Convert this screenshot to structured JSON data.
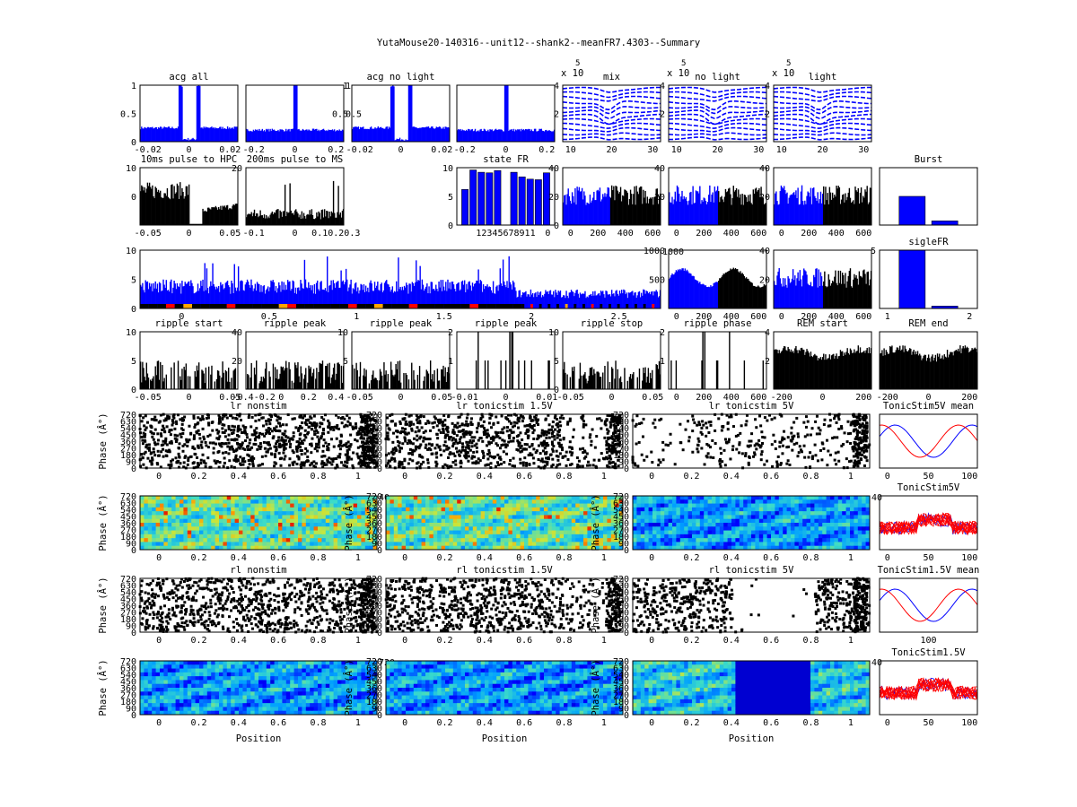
{
  "figure_title": "YutaMouse20-140316--unit12--shank2--meanFR7.4303--Summary",
  "colors": {
    "blue": "#0000ff",
    "black": "#000000",
    "red": "#ff0000"
  },
  "chart_data": [
    {
      "id": "acg-all",
      "type": "bar",
      "title": "acg all",
      "color": "blue",
      "ylim": [
        0,
        1
      ],
      "yticks": [
        "0",
        "0.5",
        "1"
      ],
      "xticks": [
        "-0.02",
        "0",
        "0.02"
      ],
      "shape": "acg-wide",
      "ytick_side": "left"
    },
    {
      "id": "acg-2",
      "type": "bar",
      "title": "",
      "color": "blue",
      "ylim": [
        0,
        1
      ],
      "yticks": [
        "0.5",
        "1"
      ],
      "xticks": [
        "-0.2",
        "0",
        "0.2"
      ],
      "shape": "acg-narrow",
      "ytick_side": "right"
    },
    {
      "id": "acg-no-light",
      "type": "bar",
      "title": "acg no light",
      "color": "blue",
      "ylim": [
        0,
        1
      ],
      "yticks": [
        "0.5",
        "1"
      ],
      "xticks": [
        "-0.02",
        "0",
        "0.02"
      ],
      "shape": "acg-wide",
      "ytick_side": "left"
    },
    {
      "id": "acg-4",
      "type": "bar",
      "title": "",
      "color": "blue",
      "ylim": [
        0,
        1
      ],
      "yticks": [],
      "xticks": [
        "-0.2",
        "0",
        "0.2"
      ],
      "shape": "acg-narrow",
      "ytick_side": "left"
    },
    {
      "id": "waveform-mix",
      "type": "line",
      "title": "mix",
      "color": "blue",
      "exponent": "x 10",
      "exponent_power": "5",
      "ylim": [
        0,
        4.5
      ],
      "yticks": [
        "2",
        "4"
      ],
      "xticks": [
        "10",
        "20",
        "30"
      ],
      "xlim": [
        0,
        32
      ]
    },
    {
      "id": "waveform-no-light",
      "type": "line",
      "title": "no light",
      "color": "blue",
      "exponent": "x 10",
      "exponent_power": "5",
      "ylim": [
        0,
        4.5
      ],
      "yticks": [
        "2",
        "4"
      ],
      "xticks": [
        "10",
        "20",
        "30"
      ],
      "xlim": [
        0,
        32
      ]
    },
    {
      "id": "waveform-light",
      "type": "line",
      "title": "light",
      "color": "blue",
      "exponent": "x 10",
      "exponent_power": "5",
      "ylim": [
        0,
        4.5
      ],
      "yticks": [
        "2",
        "4"
      ],
      "xticks": [
        "10",
        "20",
        "30"
      ],
      "xlim": [
        0,
        32
      ]
    },
    {
      "id": "pulse-hpc",
      "type": "bar",
      "title": "10ms pulse to HPC",
      "color": "black",
      "ylim": [
        0,
        20
      ],
      "yticks": [
        "0",
        "10"
      ],
      "xticks": [
        "-0.05",
        "0",
        "0.05"
      ],
      "shape": "pulse-hpc"
    },
    {
      "id": "pulse-ms",
      "type": "bar",
      "title": "200ms pulse to MS",
      "color": "black",
      "ylim": [
        0,
        20
      ],
      "yticks": [
        "20"
      ],
      "xticks": [
        "-0.1",
        "0",
        "0.10.20.3"
      ],
      "shape": "pulse-ms"
    },
    {
      "id": "state-fr",
      "type": "bar",
      "title": "state FR",
      "color": "blue",
      "ylim": [
        0,
        10
      ],
      "categories": [
        "1",
        "2",
        "3",
        "4",
        "5",
        "6",
        "7",
        "8",
        "9",
        "10",
        "11"
      ],
      "values": [
        6.2,
        9.6,
        9.2,
        9.1,
        9.5,
        0,
        9.2,
        8.4,
        8.0,
        7.9,
        9.1
      ],
      "yticks": [
        "0",
        "5",
        "10"
      ],
      "xticks": [
        "12345678911"
      ],
      "xtick_extra": "0"
    },
    {
      "id": "fr-hist-1",
      "type": "bar",
      "title": "",
      "color": "mixed",
      "ylim": [
        0,
        40
      ],
      "yticks": [
        "0",
        "20",
        "40"
      ],
      "xticks": [
        "0",
        "200",
        "400",
        "600"
      ],
      "split": 0.48,
      "shape": "fr-hist"
    },
    {
      "id": "fr-hist-2",
      "type": "bar",
      "title": "",
      "color": "mixed",
      "ylim": [
        0,
        40
      ],
      "yticks": [
        "20",
        "40"
      ],
      "xticks": [
        "0",
        "200",
        "400",
        "600"
      ],
      "split": 0.5,
      "shape": "fr-hist"
    },
    {
      "id": "fr-hist-3",
      "type": "bar",
      "title": "",
      "color": "mixed",
      "ylim": [
        0,
        40
      ],
      "yticks": [
        "20",
        "40"
      ],
      "xticks": [
        "0",
        "200",
        "400",
        "600"
      ],
      "split": 0.5,
      "shape": "fr-hist"
    },
    {
      "id": "burst",
      "type": "bar",
      "title": "Burst",
      "color": "blue",
      "ylim": [
        0,
        1.1
      ],
      "categories": [
        "1",
        "2"
      ],
      "values": [
        0.55,
        0.08
      ],
      "yticks": [],
      "xticks": []
    },
    {
      "id": "session-fr",
      "type": "bar",
      "title": "",
      "color": "blue",
      "ylim": [
        0,
        11
      ],
      "yticks": [
        "0",
        "5",
        "10"
      ],
      "xticks": [
        "0",
        "0.5",
        "1",
        "1.5",
        "2",
        "2.5"
      ],
      "shape": "session",
      "right_ytick": "1000"
    },
    {
      "id": "fr-hist-4",
      "type": "bar",
      "title": "",
      "color": "mixed",
      "ylim": [
        0,
        1000
      ],
      "yticks": [
        "500",
        "1000"
      ],
      "xticks": [
        "0",
        "200",
        "400",
        "600"
      ],
      "split": 0.5,
      "shape": "fr-flat"
    },
    {
      "id": "fr-hist-5",
      "type": "bar",
      "title": "",
      "color": "mixed",
      "ylim": [
        0,
        40
      ],
      "yticks": [
        "20",
        "40"
      ],
      "xticks": [
        "0",
        "200",
        "400",
        "600"
      ],
      "split": 0.5,
      "shape": "fr-hist"
    },
    {
      "id": "sigle-fr",
      "type": "bar",
      "title": "sigleFR",
      "color": "blue",
      "ylim": [
        0,
        5
      ],
      "categories": [
        "1",
        "2"
      ],
      "values": [
        5.0,
        0.2
      ],
      "yticks": [
        "5"
      ],
      "xticks": [
        "1",
        "2"
      ]
    },
    {
      "id": "ripple-start",
      "type": "bar",
      "title": "ripple start",
      "color": "black",
      "ylim": [
        0,
        10
      ],
      "yticks": [
        "0",
        "5",
        "10"
      ],
      "xticks": [
        "-0.05",
        "0",
        "0.05"
      ],
      "shape": "sparse"
    },
    {
      "id": "ripple-peak-1",
      "type": "bar",
      "title": "ripple peak",
      "color": "black",
      "ylim": [
        0,
        40
      ],
      "yticks": [
        "20",
        "40"
      ],
      "xticks": [
        "-0.4-0.2",
        "0",
        "0.2",
        "0.4"
      ],
      "shape": "sparse"
    },
    {
      "id": "ripple-peak-2",
      "type": "bar",
      "title": "ripple peak",
      "color": "black",
      "ylim": [
        0,
        10
      ],
      "yticks": [
        "5",
        "10"
      ],
      "xticks": [
        "-0.05",
        "0",
        "0.05"
      ],
      "shape": "sparse"
    },
    {
      "id": "ripple-peak-3",
      "type": "bar",
      "title": "ripple peak",
      "color": "black",
      "ylim": [
        0,
        2
      ],
      "yticks": [
        "1",
        "2"
      ],
      "xticks": [
        "-0.01",
        "0",
        "0.01"
      ],
      "shape": "spikes"
    },
    {
      "id": "ripple-stop",
      "type": "bar",
      "title": "ripple stop",
      "color": "black",
      "ylim": [
        0,
        10
      ],
      "yticks": [
        "0",
        "5",
        "10"
      ],
      "xticks": [
        "-0.05",
        "0",
        "0.05"
      ],
      "shape": "sparse"
    },
    {
      "id": "ripple-phase",
      "type": "bar",
      "title": "ripple phase",
      "color": "black",
      "ylim": [
        0,
        2
      ],
      "yticks": [
        "1",
        "2"
      ],
      "xticks": [
        "0",
        "200",
        "400",
        "600"
      ],
      "shape": "spikes"
    },
    {
      "id": "rem-start",
      "type": "bar",
      "title": "REM start",
      "color": "black",
      "ylim": [
        0,
        4
      ],
      "yticks": [
        "2",
        "4"
      ],
      "xticks": [
        "-200",
        "0",
        "200"
      ],
      "shape": "dense"
    },
    {
      "id": "rem-end",
      "type": "bar",
      "title": "REM end",
      "color": "black",
      "ylim": [
        0,
        4
      ],
      "yticks": [],
      "xticks": [
        "-200",
        "0",
        "200"
      ],
      "shape": "dense"
    },
    {
      "id": "lr-nonstim-raster",
      "type": "scatter",
      "title": "lr nonstim",
      "color": "black",
      "ylabel": "Phase (Â°)",
      "yticks": [
        "0",
        "90",
        "180",
        "270",
        "360",
        "450",
        "540",
        "630",
        "720"
      ],
      "xticks": [
        "0",
        "0.2",
        "0.4",
        "0.6",
        "0.8",
        "1"
      ],
      "shape": "raster-full"
    },
    {
      "id": "lr-tonic-1-5v-raster",
      "type": "scatter",
      "title": "lr tonicstim 1.5V",
      "color": "black",
      "ylabel": "",
      "yticks": [
        "0",
        "90",
        "180",
        "270",
        "360",
        "450",
        "540",
        "630",
        "720"
      ],
      "xticks": [
        "0",
        "0.2",
        "0.4",
        "0.6",
        "0.8",
        "1"
      ],
      "shape": "raster-mid"
    },
    {
      "id": "lr-tonic-5v-raster",
      "type": "scatter",
      "title": "lr tonicstim 5V",
      "color": "black",
      "ylabel": "",
      "yticks": [
        "0",
        "90",
        "180",
        "270",
        "360",
        "450",
        "540",
        "630",
        "720"
      ],
      "xticks": [
        "0",
        "0.2",
        "0.4",
        "0.6",
        "0.8",
        "1"
      ],
      "shape": "raster-sparse"
    },
    {
      "id": "tonic-5v-mean",
      "type": "line",
      "title": "TonicStim5V mean",
      "color": "mixed",
      "yticks": [],
      "xticks": [
        "0",
        "50",
        "100"
      ],
      "shape": "mean"
    },
    {
      "id": "lr-nonstim-map",
      "type": "heatmap",
      "title": "",
      "ylabel": "Phase (Â°)",
      "yticks": [
        "0",
        "90",
        "180",
        "270",
        "360",
        "450",
        "540",
        "630",
        "720"
      ],
      "xticks": [
        "0",
        "0.2",
        "0.4",
        "0.6",
        "0.8",
        "1"
      ],
      "right_ytick": "40",
      "shape": "map-hot"
    },
    {
      "id": "lr-tonic-1-5v-map",
      "type": "heatmap",
      "title": "",
      "ylabel": "Phase (Â°)",
      "yticks": [
        "0",
        "90",
        "180",
        "270",
        "360",
        "450",
        "540",
        "630",
        "720"
      ],
      "xticks": [
        "0",
        "0.2",
        "0.4",
        "0.6",
        "0.8",
        "1"
      ],
      "shape": "map-hot"
    },
    {
      "id": "lr-tonic-5v-map",
      "type": "heatmap",
      "title": "",
      "ylabel": "Phase (Â°)",
      "yticks": [
        "0",
        "90",
        "180",
        "270",
        "360",
        "450",
        "540",
        "630",
        "720"
      ],
      "xticks": [
        "0",
        "0.2",
        "0.4",
        "0.6",
        "0.8",
        "1"
      ],
      "right_ytick": "40",
      "shape": "map-cool"
    },
    {
      "id": "tonic-5v",
      "type": "line",
      "title": "TonicStim5V",
      "color": "mixed",
      "yticks": [],
      "xticks": [
        "0",
        "50",
        "100"
      ],
      "shape": "traces"
    },
    {
      "id": "rl-nonstim-raster",
      "type": "scatter",
      "title": "rl nonstim",
      "color": "black",
      "ylabel": "Phase (Â°)",
      "yticks": [
        "0",
        "90",
        "180",
        "270",
        "360",
        "450",
        "540",
        "630",
        "720"
      ],
      "xticks": [
        "0",
        "0.2",
        "0.4",
        "0.6",
        "0.8",
        "1"
      ],
      "shape": "raster-full"
    },
    {
      "id": "rl-tonic-1-5v-raster",
      "type": "scatter",
      "title": "rl tonicstim 1.5V",
      "color": "black",
      "ylabel": "Phase (Â°)",
      "yticks": [
        "0",
        "90",
        "180",
        "270",
        "360",
        "450",
        "540",
        "630",
        "720"
      ],
      "xticks": [
        "0",
        "0.2",
        "0.4",
        "0.6",
        "0.8",
        "1"
      ],
      "shape": "raster-mid"
    },
    {
      "id": "rl-tonic-5v-raster",
      "type": "scatter",
      "title": "rl tonicstim 5V",
      "color": "black",
      "ylabel": "Phase (Â°)",
      "yticks": [
        "0",
        "90",
        "180",
        "270",
        "360",
        "450",
        "540",
        "630",
        "720"
      ],
      "xticks": [
        "0",
        "0.2",
        "0.4",
        "0.6",
        "0.8",
        "1"
      ],
      "shape": "raster-half"
    },
    {
      "id": "tonic-1-5v-mean",
      "type": "line",
      "title": "TonicStim1.5V mean",
      "color": "mixed",
      "yticks": [],
      "xticks": [
        "100"
      ],
      "shape": "mean"
    },
    {
      "id": "rl-nonstim-map",
      "type": "heatmap",
      "title": "",
      "ylabel": "Phase (Â°)",
      "xlabel": "Position",
      "yticks": [
        "0",
        "90",
        "180",
        "270",
        "360",
        "450",
        "540",
        "630",
        "720"
      ],
      "xticks": [
        "0",
        "0.2",
        "0.4",
        "0.6",
        "0.8",
        "1"
      ],
      "right_ytick": "720",
      "shape": "map-cool"
    },
    {
      "id": "rl-tonic-1-5v-map",
      "type": "heatmap",
      "title": "",
      "ylabel": "Phase (Â°)",
      "xlabel": "Position",
      "yticks": [
        "0",
        "90",
        "180",
        "270",
        "360",
        "450",
        "540",
        "630",
        "720"
      ],
      "xticks": [
        "0",
        "0.2",
        "0.4",
        "0.6",
        "0.8",
        "1"
      ],
      "shape": "map-cool"
    },
    {
      "id": "rl-tonic-5v-map",
      "type": "heatmap",
      "title": "",
      "ylabel": "Phase (Â°)",
      "xlabel": "Position",
      "yticks": [
        "0",
        "90",
        "180",
        "270",
        "360",
        "450",
        "540",
        "630",
        "720"
      ],
      "xticks": [
        "0",
        "0.2",
        "0.4",
        "0.6",
        "0.8",
        "1"
      ],
      "right_ytick": "40",
      "shape": "map-half"
    },
    {
      "id": "tonic-1-5v",
      "type": "line",
      "title": "TonicStim1.5V",
      "color": "mixed",
      "yticks": [],
      "xticks": [
        "0",
        "50",
        "100"
      ],
      "shape": "traces"
    }
  ]
}
